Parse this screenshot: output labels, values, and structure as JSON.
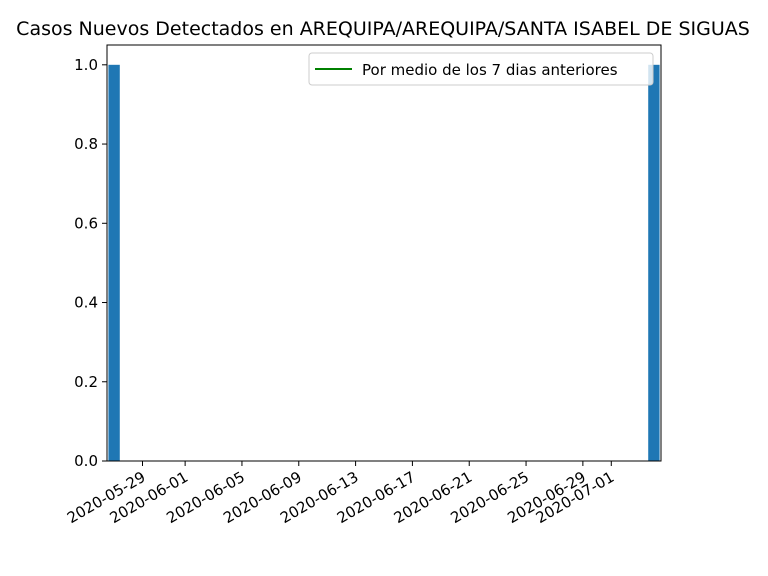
{
  "chart_data": {
    "type": "bar",
    "title": "Casos Nuevos Detectados en AREQUIPA/AREQUIPA/SANTA ISABEL DE SIGUAS",
    "xlabel": "",
    "ylabel": "",
    "x_range": [
      "2020-05-27",
      "2020-07-04"
    ],
    "ylim": [
      0,
      1.05
    ],
    "y_ticks": [
      0.0,
      0.2,
      0.4,
      0.6,
      0.8,
      1.0
    ],
    "y_tick_labels": [
      "0.0",
      "0.2",
      "0.4",
      "0.6",
      "0.8",
      "1.0"
    ],
    "x_ticks": [
      "2020-05-29",
      "2020-06-01",
      "2020-06-05",
      "2020-06-09",
      "2020-06-13",
      "2020-06-17",
      "2020-06-21",
      "2020-06-25",
      "2020-06-29",
      "2020-07-01"
    ],
    "bars": [
      {
        "x": "2020-05-27",
        "value": 1
      },
      {
        "x": "2020-07-04",
        "value": 1
      }
    ],
    "series": [
      {
        "name": "Por medio de los 7 dias anteriores",
        "type": "line",
        "values": []
      }
    ],
    "legend_position": "top-right",
    "grid": false,
    "colors": {
      "bar": "#1f77b4",
      "line": "#008000",
      "text": "#000000",
      "axis": "#000000"
    }
  }
}
